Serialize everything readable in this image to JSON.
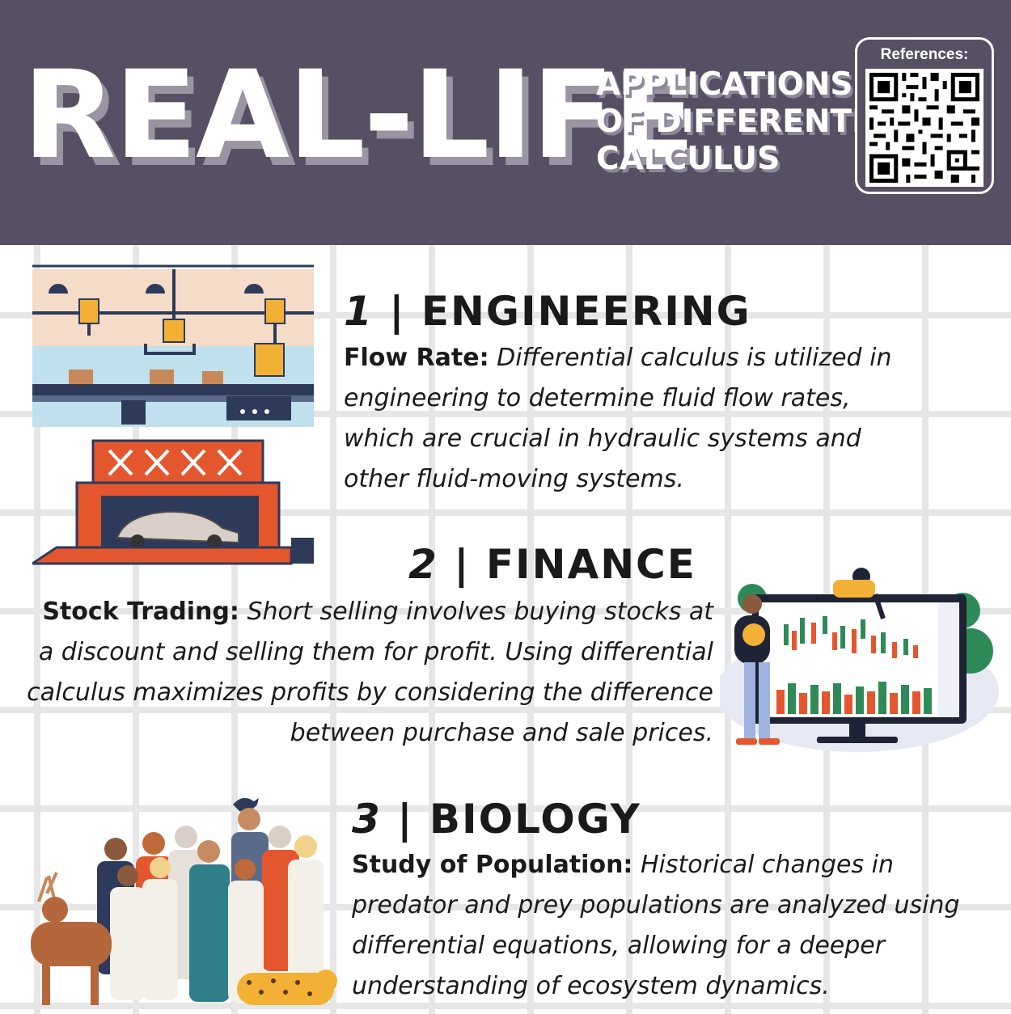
{
  "header": {
    "title": "REAL-LIFE",
    "subtitle_lines": [
      "APPLICATIONS",
      "OF DIFFERENTIAL",
      "CALCULUS"
    ],
    "references_label": "References:"
  },
  "sections": [
    {
      "number": "1",
      "heading": "ENGINEERING",
      "lead": "Flow Rate:",
      "body": "Differential calculus is utilized in engineering to determine fluid flow rates, which are crucial in hydraulic systems and other fluid-moving systems."
    },
    {
      "number": "2",
      "heading": "FINANCE",
      "lead": "Stock Trading:",
      "body": "Short selling involves buying stocks at a discount and selling them for profit. Using differential calculus maximizes profits by considering the difference between purchase and sale prices."
    },
    {
      "number": "3",
      "heading": "BIOLOGY",
      "lead": "Study of Population:",
      "body": "Historical changes in predator and prey populations are analyzed using differential equations, allowing for a deeper understanding of ecosystem dynamics."
    }
  ],
  "colors": {
    "header_bg": "#574f63",
    "text": "#1a1a1a",
    "accent_orange": "#e4572e",
    "accent_green": "#2e8b57"
  }
}
